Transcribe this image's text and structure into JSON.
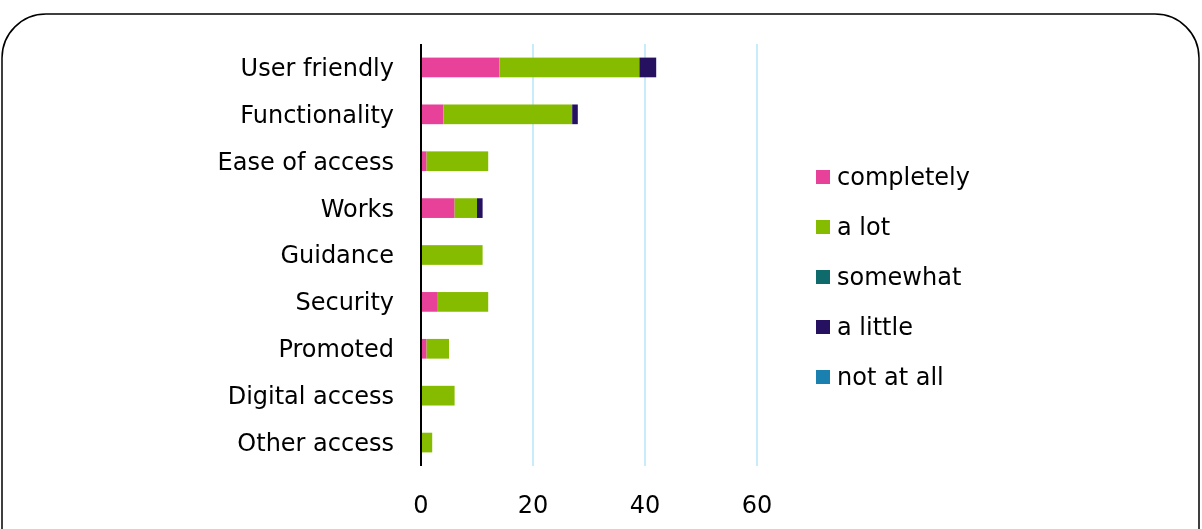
{
  "chart_data": {
    "type": "bar",
    "orientation": "horizontal",
    "stacked": true,
    "categories": [
      "User friendly",
      "Functionality",
      "Ease of access",
      "Works",
      "Guidance",
      "Security ",
      "Promoted",
      "Digital access",
      "Other access"
    ],
    "series": [
      {
        "name": "completely",
        "color": "#e8419a",
        "values": [
          14,
          4,
          1,
          6,
          0,
          3,
          1,
          0,
          0
        ]
      },
      {
        "name": "a lot",
        "color": "#86bc00",
        "values": [
          25,
          23,
          11,
          4,
          11,
          9,
          4,
          6,
          2
        ]
      },
      {
        "name": "somewhat",
        "color": "#0f6b6b",
        "values": [
          0,
          0,
          0,
          0,
          0,
          0,
          0,
          0,
          0
        ]
      },
      {
        "name": "a little",
        "color": "#261161",
        "values": [
          3,
          1,
          0,
          1,
          0,
          0,
          0,
          0,
          0
        ]
      },
      {
        "name": "not at all",
        "color": "#1a80b0",
        "values": [
          0,
          0,
          0,
          0,
          0,
          0,
          0,
          0,
          0
        ]
      }
    ],
    "xlim": [
      0,
      60
    ],
    "xticks": [
      0,
      20,
      40,
      60
    ],
    "grid": "x",
    "legend": "right"
  }
}
